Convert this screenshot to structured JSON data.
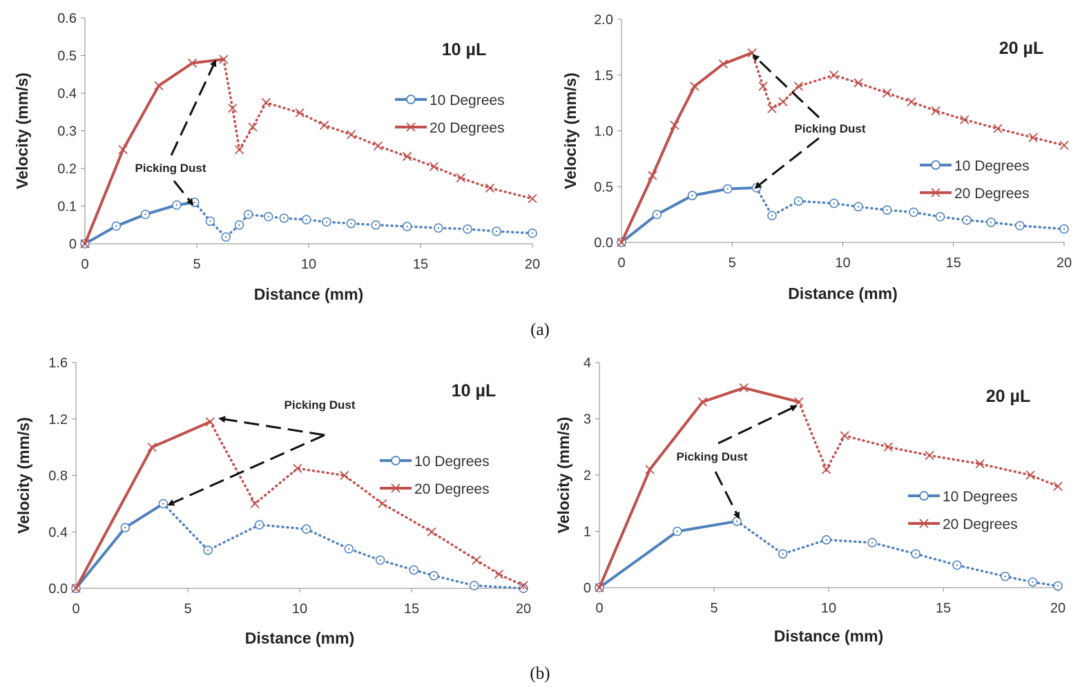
{
  "figure_labels": [
    "(a)",
    "(b)"
  ],
  "chart_data": [
    {
      "type": "line",
      "panel": "(a)",
      "title": "10 µL",
      "xlabel": "Distance (mm)",
      "ylabel": "Velocity (mm/s)",
      "xlim": [
        0,
        20
      ],
      "ylim": [
        0,
        0.6
      ],
      "xticks": [
        "0",
        "5",
        "10",
        "15",
        "20"
      ],
      "yticks": [
        "0",
        "0.1",
        "0.2",
        "0.3",
        "0.4",
        "0.5",
        "0.6"
      ],
      "annotation": "Picking Dust",
      "series": [
        {
          "name": "10 Degrees",
          "color": "#4f81bd",
          "marker": "circle",
          "solid": [
            [
              0,
              0
            ],
            [
              1.4,
              0.047
            ],
            [
              2.7,
              0.078
            ],
            [
              4.1,
              0.103
            ],
            [
              4.9,
              0.11
            ]
          ],
          "dotted": [
            [
              4.9,
              0.11
            ],
            [
              5.6,
              0.06
            ],
            [
              6.3,
              0.018
            ],
            [
              6.9,
              0.05
            ],
            [
              7.3,
              0.078
            ],
            [
              8.2,
              0.072
            ],
            [
              8.9,
              0.068
            ],
            [
              9.9,
              0.064
            ],
            [
              10.8,
              0.058
            ],
            [
              11.9,
              0.054
            ],
            [
              13.0,
              0.05
            ],
            [
              14.4,
              0.046
            ],
            [
              15.8,
              0.042
            ],
            [
              17.1,
              0.039
            ],
            [
              18.4,
              0.033
            ],
            [
              20.0,
              0.028
            ]
          ]
        },
        {
          "name": "20 Degrees",
          "color": "#c0504d",
          "marker": "x",
          "solid": [
            [
              0,
              0
            ],
            [
              1.7,
              0.25
            ],
            [
              3.3,
              0.42
            ],
            [
              4.8,
              0.48
            ],
            [
              6.2,
              0.49
            ]
          ],
          "dotted": [
            [
              6.2,
              0.49
            ],
            [
              6.6,
              0.36
            ],
            [
              6.9,
              0.25
            ],
            [
              7.5,
              0.31
            ],
            [
              8.1,
              0.375
            ],
            [
              9.6,
              0.348
            ],
            [
              10.7,
              0.315
            ],
            [
              11.9,
              0.29
            ],
            [
              13.1,
              0.26
            ],
            [
              14.4,
              0.232
            ],
            [
              15.6,
              0.205
            ],
            [
              16.8,
              0.175
            ],
            [
              18.1,
              0.148
            ],
            [
              20.0,
              0.12
            ]
          ]
        }
      ]
    },
    {
      "type": "line",
      "panel": "(a)",
      "title": "20 µL",
      "xlabel": "Distance (mm)",
      "ylabel": "Velocity (mm/s)",
      "xlim": [
        0,
        20
      ],
      "ylim": [
        0,
        2.0
      ],
      "xticks": [
        "0",
        "5",
        "10",
        "15",
        "20"
      ],
      "yticks": [
        "0.0",
        "0.5",
        "1.0",
        "1.5",
        "2.0"
      ],
      "annotation": "Picking Dust",
      "series": [
        {
          "name": "10 Degrees",
          "color": "#4f81bd",
          "marker": "circle",
          "solid": [
            [
              0,
              0
            ],
            [
              1.6,
              0.25
            ],
            [
              3.2,
              0.42
            ],
            [
              4.8,
              0.48
            ],
            [
              6.1,
              0.49
            ]
          ],
          "dotted": [
            [
              6.1,
              0.49
            ],
            [
              6.8,
              0.24
            ],
            [
              8.0,
              0.37
            ],
            [
              9.6,
              0.35
            ],
            [
              10.7,
              0.32
            ],
            [
              12.0,
              0.29
            ],
            [
              13.2,
              0.27
            ],
            [
              14.4,
              0.23
            ],
            [
              15.6,
              0.2
            ],
            [
              16.7,
              0.18
            ],
            [
              18.0,
              0.15
            ],
            [
              20.0,
              0.12
            ]
          ]
        },
        {
          "name": "20 Degrees",
          "color": "#c0504d",
          "marker": "x",
          "solid": [
            [
              0,
              0
            ],
            [
              1.4,
              0.6
            ],
            [
              2.4,
              1.05
            ],
            [
              3.3,
              1.4
            ],
            [
              4.6,
              1.6
            ],
            [
              5.9,
              1.7
            ]
          ],
          "dotted": [
            [
              5.9,
              1.7
            ],
            [
              6.4,
              1.4
            ],
            [
              6.8,
              1.2
            ],
            [
              7.3,
              1.26
            ],
            [
              8.0,
              1.4
            ],
            [
              9.6,
              1.5
            ],
            [
              10.7,
              1.43
            ],
            [
              12.0,
              1.34
            ],
            [
              13.1,
              1.26
            ],
            [
              14.2,
              1.18
            ],
            [
              15.5,
              1.1
            ],
            [
              17.0,
              1.02
            ],
            [
              18.6,
              0.94
            ],
            [
              20.0,
              0.87
            ]
          ]
        }
      ]
    },
    {
      "type": "line",
      "panel": "(b)",
      "title": "10 µL",
      "xlabel": "Distance (mm)",
      "ylabel": "Velocity (mm/s)",
      "xlim": [
        0,
        20
      ],
      "ylim": [
        0,
        1.6
      ],
      "xticks": [
        "0",
        "5",
        "10",
        "15",
        "20"
      ],
      "yticks": [
        "0.0",
        "0.4",
        "0.8",
        "1.2",
        "1.6"
      ],
      "annotation": "Picking Dust",
      "series": [
        {
          "name": "10 Degrees",
          "color": "#4f81bd",
          "marker": "circle",
          "solid": [
            [
              0,
              0
            ],
            [
              2.2,
              0.43
            ],
            [
              3.9,
              0.6
            ]
          ],
          "dotted": [
            [
              3.9,
              0.6
            ],
            [
              5.9,
              0.27
            ],
            [
              8.2,
              0.45
            ],
            [
              10.3,
              0.42
            ],
            [
              12.2,
              0.28
            ],
            [
              13.6,
              0.2
            ],
            [
              15.1,
              0.13
            ],
            [
              16.0,
              0.09
            ],
            [
              17.8,
              0.02
            ],
            [
              20.0,
              0.0
            ]
          ]
        },
        {
          "name": "20 Degrees",
          "color": "#c0504d",
          "marker": "x",
          "solid": [
            [
              0,
              0
            ],
            [
              3.4,
              1.0
            ],
            [
              6.0,
              1.18
            ]
          ],
          "dotted": [
            [
              6.0,
              1.18
            ],
            [
              8.0,
              0.6
            ],
            [
              9.9,
              0.85
            ],
            [
              12.0,
              0.8
            ],
            [
              13.7,
              0.6
            ],
            [
              15.9,
              0.4
            ],
            [
              17.9,
              0.2
            ],
            [
              18.9,
              0.1
            ],
            [
              20.0,
              0.02
            ]
          ]
        }
      ]
    },
    {
      "type": "line",
      "panel": "(b)",
      "title": "20 µL",
      "xlabel": "Distance (mm)",
      "ylabel": "Velocity (mm/s)",
      "xlim": [
        0,
        20
      ],
      "ylim": [
        0,
        4
      ],
      "xticks": [
        "0",
        "5",
        "10",
        "15",
        "20"
      ],
      "yticks": [
        "0",
        "1",
        "2",
        "3",
        "4"
      ],
      "annotation": "Picking Dust",
      "series": [
        {
          "name": "10 Degrees",
          "color": "#4f81bd",
          "marker": "circle",
          "solid": [
            [
              0,
              0
            ],
            [
              3.4,
              1.0
            ],
            [
              6.0,
              1.18
            ]
          ],
          "dotted": [
            [
              6.0,
              1.18
            ],
            [
              8.0,
              0.6
            ],
            [
              9.9,
              0.85
            ],
            [
              11.9,
              0.8
            ],
            [
              13.8,
              0.6
            ],
            [
              15.6,
              0.4
            ],
            [
              17.7,
              0.2
            ],
            [
              18.9,
              0.1
            ],
            [
              20.0,
              0.03
            ]
          ]
        },
        {
          "name": "20 Degrees",
          "color": "#c0504d",
          "marker": "x",
          "solid": [
            [
              0,
              0
            ],
            [
              2.2,
              2.1
            ],
            [
              4.5,
              3.3
            ],
            [
              6.3,
              3.55
            ],
            [
              8.7,
              3.3
            ]
          ],
          "dotted": [
            [
              8.7,
              3.3
            ],
            [
              9.9,
              2.1
            ],
            [
              10.7,
              2.7
            ],
            [
              12.6,
              2.5
            ],
            [
              14.4,
              2.35
            ],
            [
              16.6,
              2.2
            ],
            [
              18.8,
              2.0
            ],
            [
              20.0,
              1.8
            ]
          ]
        }
      ]
    }
  ]
}
